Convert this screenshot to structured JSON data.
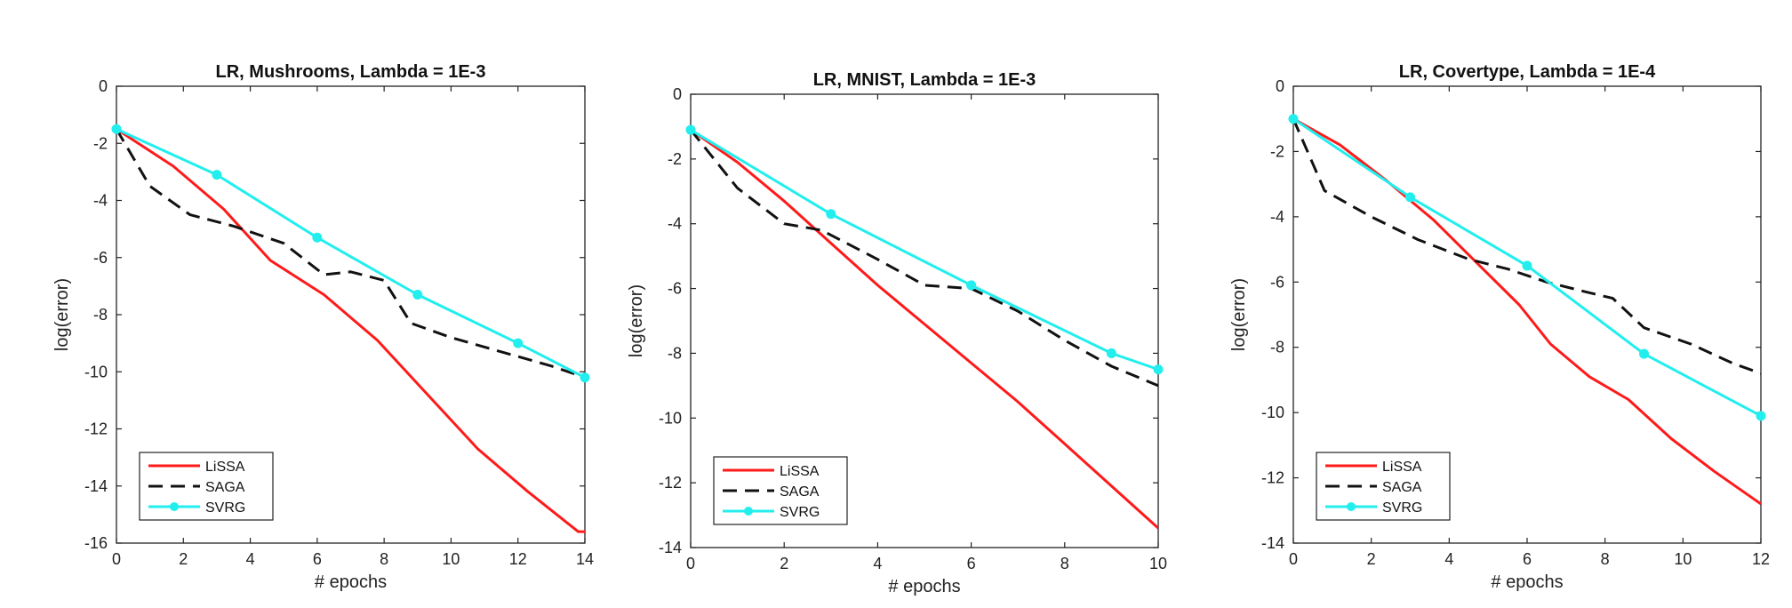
{
  "chart_data": [
    {
      "type": "line",
      "title": "LR, Mushrooms, Lambda = 1E-3",
      "xlabel": "# epochs",
      "ylabel": "log(error)",
      "xlim": [
        0,
        14
      ],
      "ylim": [
        -16,
        0
      ],
      "xticks": [
        0,
        2,
        4,
        6,
        8,
        10,
        12,
        14
      ],
      "yticks": [
        0,
        -2,
        -4,
        -6,
        -8,
        -10,
        -12,
        -14,
        -16
      ],
      "legend_position": "bottom-left",
      "series": [
        {
          "name": "LiSSA",
          "color": "#ff1a1a",
          "style": "solid",
          "marker": "none",
          "x": [
            0,
            1.7,
            3.2,
            4.6,
            6.2,
            7.8,
            9.3,
            10.8,
            12.3,
            13.8,
            14
          ],
          "y": [
            -1.5,
            -2.8,
            -4.3,
            -6.1,
            -7.3,
            -8.9,
            -10.8,
            -12.7,
            -14.2,
            -15.6,
            -15.6
          ]
        },
        {
          "name": "SAGA",
          "color": "#111111",
          "style": "dashed",
          "marker": "none",
          "x": [
            0,
            1,
            2.2,
            3.5,
            5,
            6.2,
            7,
            8,
            8.8,
            10,
            11.5,
            13,
            14
          ],
          "y": [
            -1.5,
            -3.5,
            -4.5,
            -4.9,
            -5.5,
            -6.6,
            -6.5,
            -6.8,
            -8.3,
            -8.8,
            -9.3,
            -9.8,
            -10.2
          ]
        },
        {
          "name": "SVRG",
          "color": "#22eeee",
          "style": "solid",
          "marker": "circle",
          "x": [
            0,
            3,
            6,
            9,
            12,
            14
          ],
          "y": [
            -1.5,
            -3.1,
            -5.3,
            -7.3,
            -9,
            -10.2
          ]
        }
      ]
    },
    {
      "type": "line",
      "title": "LR, MNIST, Lambda = 1E-3",
      "xlabel": "# epochs",
      "ylabel": "log(error)",
      "xlim": [
        0,
        10
      ],
      "ylim": [
        -14,
        0
      ],
      "xticks": [
        0,
        2,
        4,
        6,
        8,
        10
      ],
      "yticks": [
        0,
        -2,
        -4,
        -6,
        -8,
        -10,
        -12,
        -14
      ],
      "legend_position": "bottom-left",
      "series": [
        {
          "name": "LiSSA",
          "color": "#ff1a1a",
          "style": "solid",
          "marker": "none",
          "x": [
            0,
            1,
            2,
            3,
            4,
            5,
            6,
            7,
            8,
            9,
            10
          ],
          "y": [
            -1.1,
            -2.1,
            -3.3,
            -4.6,
            -5.9,
            -7.1,
            -8.3,
            -9.5,
            -10.8,
            -12.1,
            -13.4
          ]
        },
        {
          "name": "SAGA",
          "color": "#111111",
          "style": "dashed",
          "marker": "none",
          "x": [
            0,
            1,
            2,
            2.8,
            4,
            5,
            6,
            7,
            8,
            9,
            10
          ],
          "y": [
            -1.1,
            -2.9,
            -4,
            -4.2,
            -5.1,
            -5.9,
            -6,
            -6.7,
            -7.6,
            -8.4,
            -9
          ]
        },
        {
          "name": "SVRG",
          "color": "#22eeee",
          "style": "solid",
          "marker": "circle",
          "x": [
            0,
            3,
            6,
            9,
            10
          ],
          "y": [
            -1.1,
            -3.7,
            -5.9,
            -8,
            -8.5
          ]
        }
      ]
    },
    {
      "type": "line",
      "title": "LR, Covertype, Lambda = 1E-4",
      "xlabel": "# epochs",
      "ylabel": "log(error)",
      "xlim": [
        0,
        12
      ],
      "ylim": [
        -14,
        0
      ],
      "xticks": [
        0,
        2,
        4,
        6,
        8,
        10,
        12
      ],
      "yticks": [
        0,
        -2,
        -4,
        -6,
        -8,
        -10,
        -12,
        -14
      ],
      "legend_position": "bottom-left",
      "series": [
        {
          "name": "LiSSA",
          "color": "#ff1a1a",
          "style": "solid",
          "marker": "none",
          "x": [
            0,
            1.2,
            2.4,
            3.6,
            4.7,
            5.8,
            6.6,
            7.6,
            8.6,
            9.7,
            10.8,
            12
          ],
          "y": [
            -1,
            -1.8,
            -2.9,
            -4.1,
            -5.4,
            -6.7,
            -7.9,
            -8.9,
            -9.6,
            -10.8,
            -11.8,
            -12.8
          ]
        },
        {
          "name": "SAGA",
          "color": "#111111",
          "style": "dashed",
          "marker": "none",
          "x": [
            0,
            0.8,
            2,
            3.2,
            4.5,
            5.5,
            6.5,
            7.5,
            8.2,
            9,
            10.2,
            11.3,
            12
          ],
          "y": [
            -1,
            -3.2,
            -4,
            -4.7,
            -5.3,
            -5.6,
            -6,
            -6.3,
            -6.5,
            -7.4,
            -7.9,
            -8.5,
            -8.8
          ]
        },
        {
          "name": "SVRG",
          "color": "#22eeee",
          "style": "solid",
          "marker": "circle",
          "x": [
            0,
            3,
            6,
            9,
            12
          ],
          "y": [
            -1,
            -3.4,
            -5.5,
            -8.2,
            -10.1
          ]
        }
      ]
    }
  ]
}
